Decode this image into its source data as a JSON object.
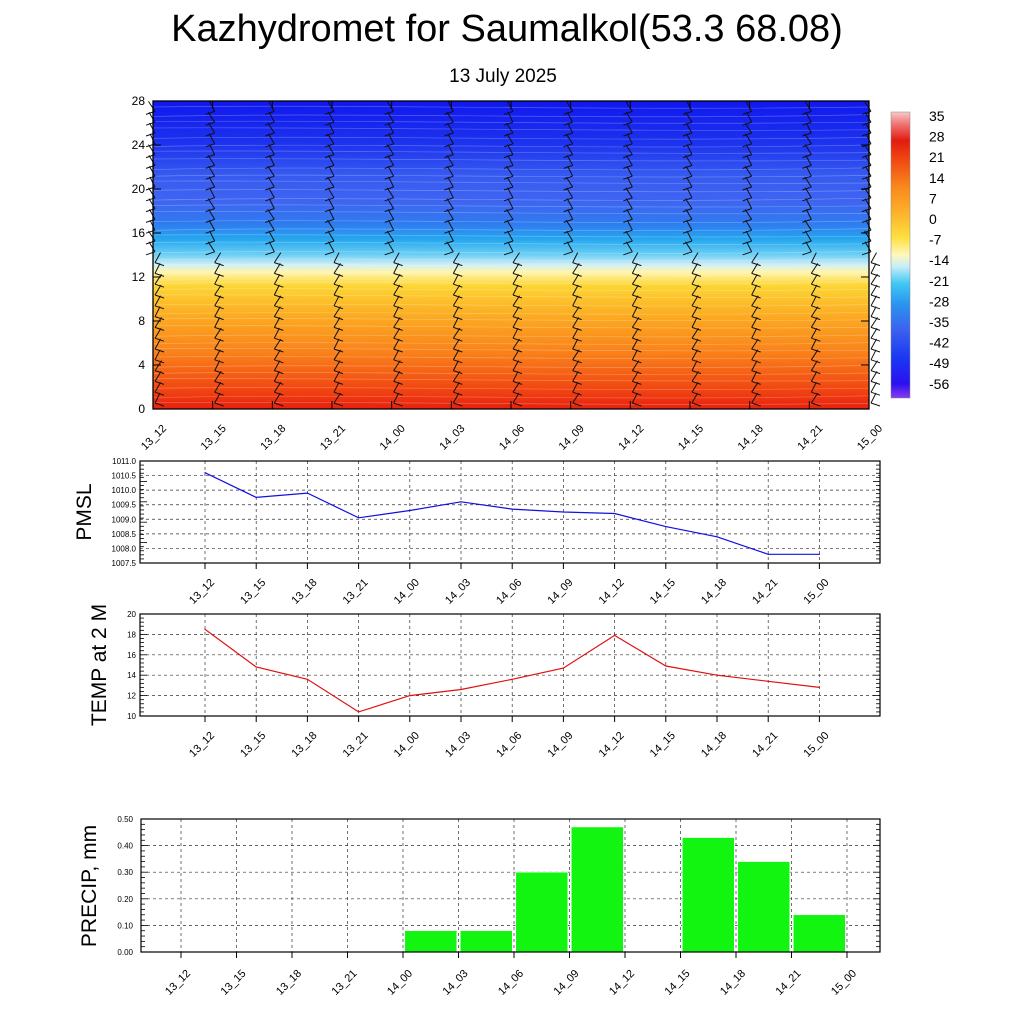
{
  "title": "Kazhydromet for Saumalkol(53.3 68.08)",
  "subtitle": "13 July 2025",
  "time_labels": [
    "13_12",
    "13_15",
    "13_18",
    "13_21",
    "14_00",
    "14_03",
    "14_06",
    "14_09",
    "14_12",
    "14_15",
    "14_18",
    "14_21",
    "15_00"
  ],
  "chart_data": [
    {
      "type": "heatmap",
      "x_ticks": [
        "13_12",
        "13_15",
        "13_18",
        "13_21",
        "14_00",
        "14_03",
        "14_06",
        "14_09",
        "14_12",
        "14_15",
        "14_18",
        "14_21",
        "15_00"
      ],
      "y_ticks": [
        "0",
        "4",
        "8",
        "12",
        "16",
        "20",
        "24",
        "28"
      ],
      "ylim": [
        0,
        28
      ],
      "colorbar_labels": [
        "35",
        "28",
        "21",
        "14",
        "7",
        "0",
        "-7",
        "-14",
        "-21",
        "-28",
        "-35",
        "-42",
        "-49",
        "-56"
      ],
      "colorbar_values": [
        35,
        28,
        21,
        14,
        7,
        0,
        -7,
        -14,
        -21,
        -28,
        -35,
        -42,
        -49,
        -56
      ],
      "wind_barbs": true
    },
    {
      "type": "line",
      "ylabel": "PMSL",
      "x": [
        "13_12",
        "13_15",
        "13_18",
        "13_21",
        "14_00",
        "14_03",
        "14_06",
        "14_09",
        "14_12",
        "14_15",
        "14_18",
        "14_21",
        "15_00"
      ],
      "values": [
        1010.6,
        1009.75,
        1009.9,
        1009.05,
        1009.3,
        1009.6,
        1009.35,
        1009.25,
        1009.2,
        1008.75,
        1008.4,
        1007.8,
        1007.8
      ],
      "ylim": [
        1007.5,
        1011.0
      ],
      "y_ticks": [
        "1007.5",
        "1008.0",
        "1008.5",
        "1009.0",
        "1009.5",
        "1010.0",
        "1010.5",
        "1011.0"
      ],
      "color": "#1010e0",
      "grid": true
    },
    {
      "type": "line",
      "ylabel": "TEMP at 2 M",
      "x": [
        "13_12",
        "13_15",
        "13_18",
        "13_21",
        "14_00",
        "14_03",
        "14_06",
        "14_09",
        "14_12",
        "14_15",
        "14_18",
        "14_21",
        "15_00"
      ],
      "values": [
        18.5,
        14.8,
        13.6,
        10.4,
        12.0,
        12.6,
        13.6,
        14.7,
        17.9,
        14.9,
        14.0,
        13.4,
        12.8
      ],
      "ylim": [
        10,
        20
      ],
      "y_ticks": [
        "10",
        "12",
        "14",
        "16",
        "18",
        "20"
      ],
      "color": "#e01010",
      "grid": true
    },
    {
      "type": "bar",
      "ylabel": "PRECIP, mm",
      "categories": [
        "13_12",
        "13_15",
        "13_18",
        "13_21",
        "14_00",
        "14_03",
        "14_06",
        "14_09",
        "14_12",
        "14_15",
        "14_18",
        "14_21",
        "15_00"
      ],
      "values": [
        0,
        0,
        0,
        0,
        0.08,
        0.08,
        0.3,
        0.47,
        0,
        0.43,
        0.34,
        0.14,
        0
      ],
      "ylim": [
        0,
        0.5
      ],
      "y_ticks": [
        "0.00",
        "0.10",
        "0.20",
        "0.30",
        "0.40",
        "0.50"
      ],
      "color": "#11f511",
      "grid": true
    }
  ]
}
